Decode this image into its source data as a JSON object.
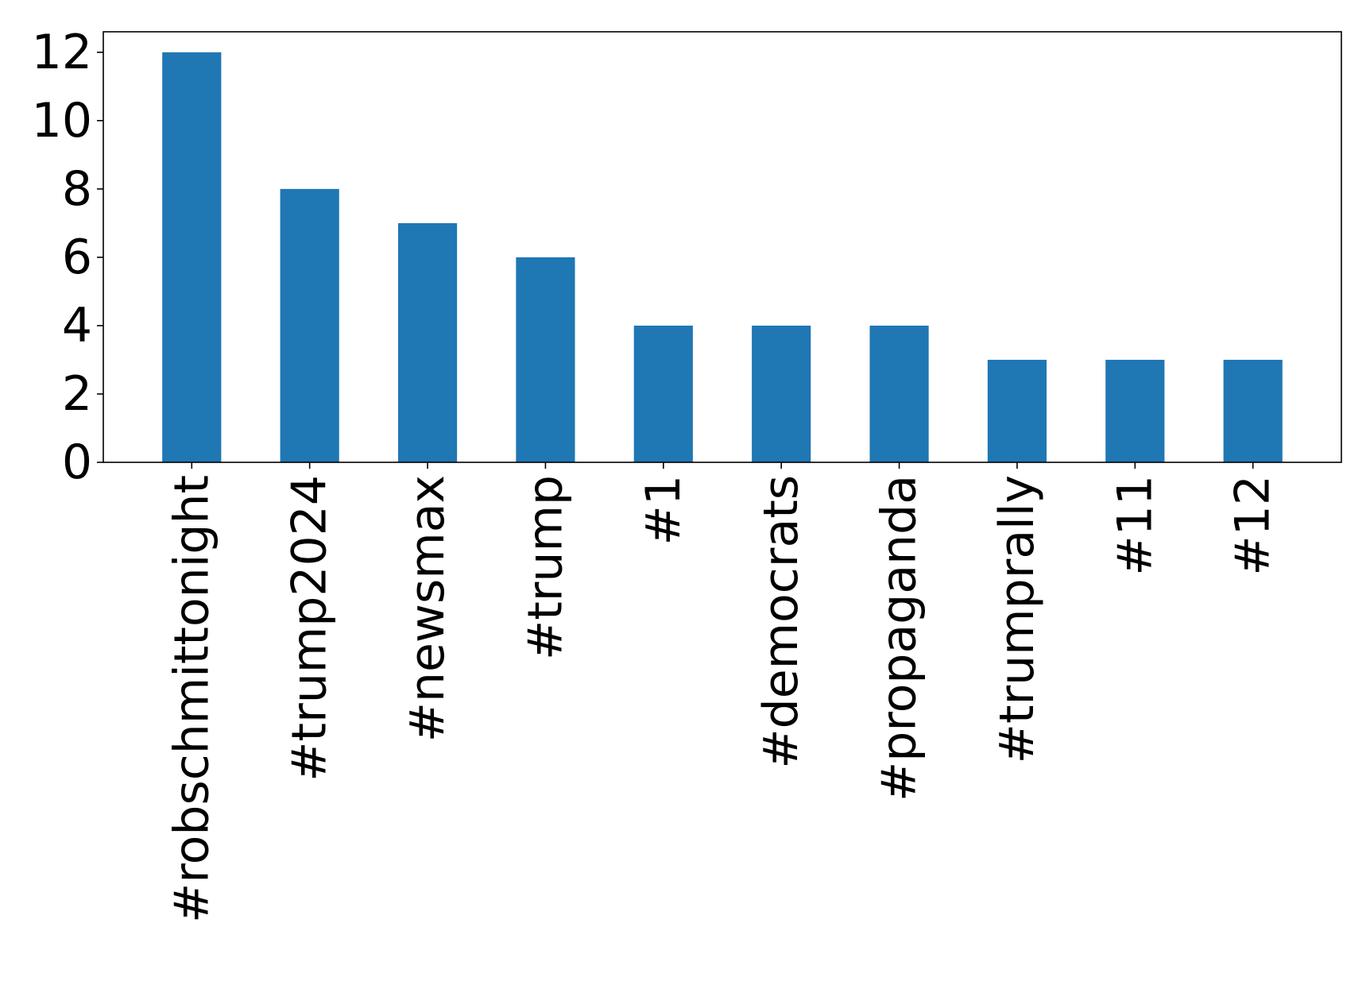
{
  "chart_data": {
    "type": "bar",
    "title": "",
    "xlabel": "",
    "ylabel": "",
    "categories": [
      "#robschmittonight",
      "#trump2024",
      "#newsmax",
      "#trump",
      "#1",
      "#democrats",
      "#propaganda",
      "#trumprally",
      "#11",
      "#12"
    ],
    "values": [
      12,
      8,
      7,
      6,
      4,
      4,
      4,
      3,
      3,
      3
    ],
    "ylim": [
      0,
      12.6
    ],
    "yticks": [
      0,
      2,
      4,
      6,
      8,
      10,
      12
    ],
    "grid": false,
    "legend": "none",
    "bar_color": "#1f77b4",
    "x_tick_rotation": "vertical"
  }
}
